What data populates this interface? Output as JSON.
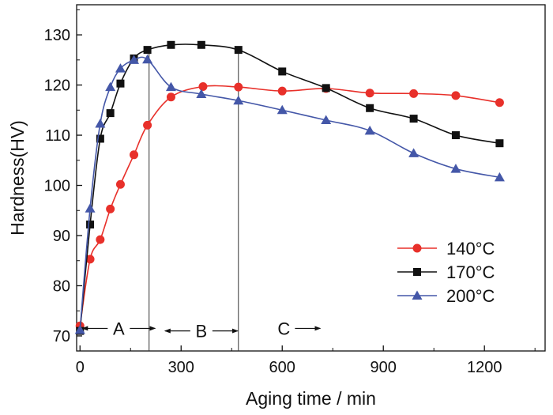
{
  "chart_data": {
    "type": "line",
    "title": "",
    "xlabel": "Aging time / min",
    "ylabel": "Hardness(HV)",
    "xlim": [
      -10,
      1380
    ],
    "ylim": [
      67,
      136
    ],
    "x_ticks": [
      0,
      300,
      600,
      900,
      1200
    ],
    "y_ticks": [
      70,
      80,
      90,
      100,
      110,
      120,
      130
    ],
    "legend_position": "bottom-right",
    "series": [
      {
        "name": "140°C",
        "color": "#e8302a",
        "marker": "circle",
        "points": [
          [
            0,
            72
          ],
          [
            30,
            85.3
          ],
          [
            60,
            89.2
          ],
          [
            90,
            95.3
          ],
          [
            120,
            100.2
          ],
          [
            160,
            106.1
          ],
          [
            200,
            112
          ],
          [
            270,
            117.6
          ],
          [
            365,
            119.7
          ],
          [
            470,
            119.6
          ],
          [
            600,
            118.8
          ],
          [
            730,
            119.3
          ],
          [
            860,
            118.4
          ],
          [
            990,
            118.3
          ],
          [
            1115,
            117.9
          ],
          [
            1245,
            116.5
          ]
        ]
      },
      {
        "name": "170°C",
        "color": "#111111",
        "marker": "square",
        "points": [
          [
            0,
            71
          ],
          [
            30,
            92.2
          ],
          [
            60,
            109.3
          ],
          [
            90,
            114.4
          ],
          [
            120,
            120.3
          ],
          [
            160,
            125.3
          ],
          [
            200,
            127
          ],
          [
            270,
            128
          ],
          [
            360,
            128
          ],
          [
            470,
            127
          ],
          [
            600,
            122.7
          ],
          [
            730,
            119.4
          ],
          [
            860,
            115.4
          ],
          [
            990,
            113.3
          ],
          [
            1115,
            110
          ],
          [
            1245,
            108.4
          ]
        ]
      },
      {
        "name": "200°C",
        "color": "#4457a8",
        "marker": "triangle",
        "points": [
          [
            0,
            71.2
          ],
          [
            30,
            95.4
          ],
          [
            60,
            112.3
          ],
          [
            90,
            119.6
          ],
          [
            120,
            123.3
          ],
          [
            160,
            125
          ],
          [
            200,
            125.1
          ],
          [
            270,
            119.6
          ],
          [
            360,
            118.2
          ],
          [
            470,
            116.9
          ],
          [
            600,
            115
          ],
          [
            730,
            113
          ],
          [
            860,
            110.9
          ],
          [
            990,
            106.4
          ],
          [
            1115,
            103.3
          ],
          [
            1245,
            101.6
          ]
        ]
      }
    ],
    "vertical_lines_x": [
      205,
      470
    ],
    "regions": [
      {
        "label": "A",
        "x": 115,
        "y": 71.5,
        "left_arrow": true,
        "right_arrow": true
      },
      {
        "label": "B",
        "x": 360,
        "y": 71,
        "left_arrow": true,
        "right_arrow": true
      },
      {
        "label": "C",
        "x": 605,
        "y": 71.5,
        "left_arrow": false,
        "right_arrow": true
      }
    ]
  }
}
